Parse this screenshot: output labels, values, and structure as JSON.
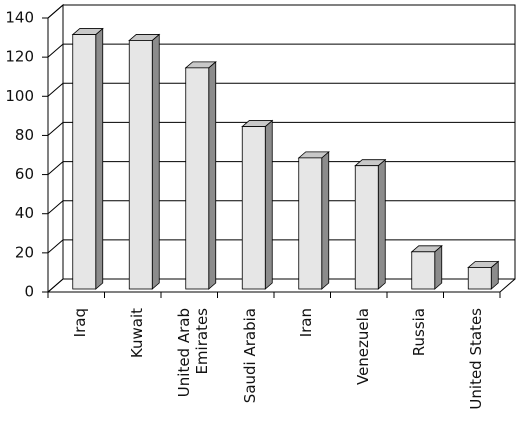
{
  "chart_data": {
    "type": "bar",
    "categories": [
      "Iraq",
      "Kuwait",
      "United Arab Emirates",
      "Saudi Arabia",
      "Iran",
      "Venezuela",
      "Russia",
      "United States"
    ],
    "values": [
      130,
      127,
      113,
      83,
      67,
      63,
      19,
      11
    ],
    "color": "#e6e6e6",
    "ylim": [
      0,
      140
    ],
    "yticks": [
      0,
      20,
      40,
      60,
      80,
      100,
      120,
      140
    ],
    "grid": true
  }
}
